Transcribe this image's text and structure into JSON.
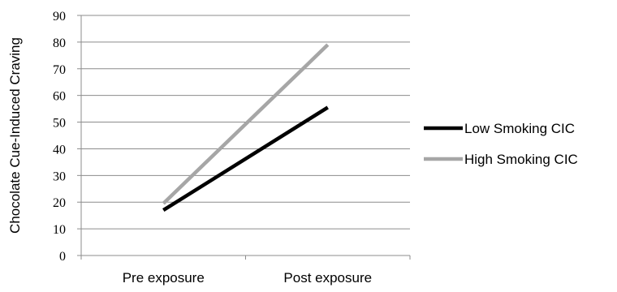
{
  "chart_data": {
    "type": "line",
    "categories": [
      "Pre exposure",
      "Post exposure"
    ],
    "series": [
      {
        "name": "Low Smoking CIC",
        "values": [
          17,
          55.5
        ],
        "color": "#000000"
      },
      {
        "name": "High Smoking CIC",
        "values": [
          19.5,
          79
        ],
        "color": "#a6a6a6"
      }
    ],
    "title": "",
    "xlabel": "",
    "ylabel": "Chocolate Cue-Induced Craving",
    "ylim": [
      0,
      90
    ],
    "yticks": [
      0,
      10,
      20,
      30,
      40,
      50,
      60,
      70,
      80,
      90
    ],
    "grid": true,
    "legend_position": "right"
  }
}
